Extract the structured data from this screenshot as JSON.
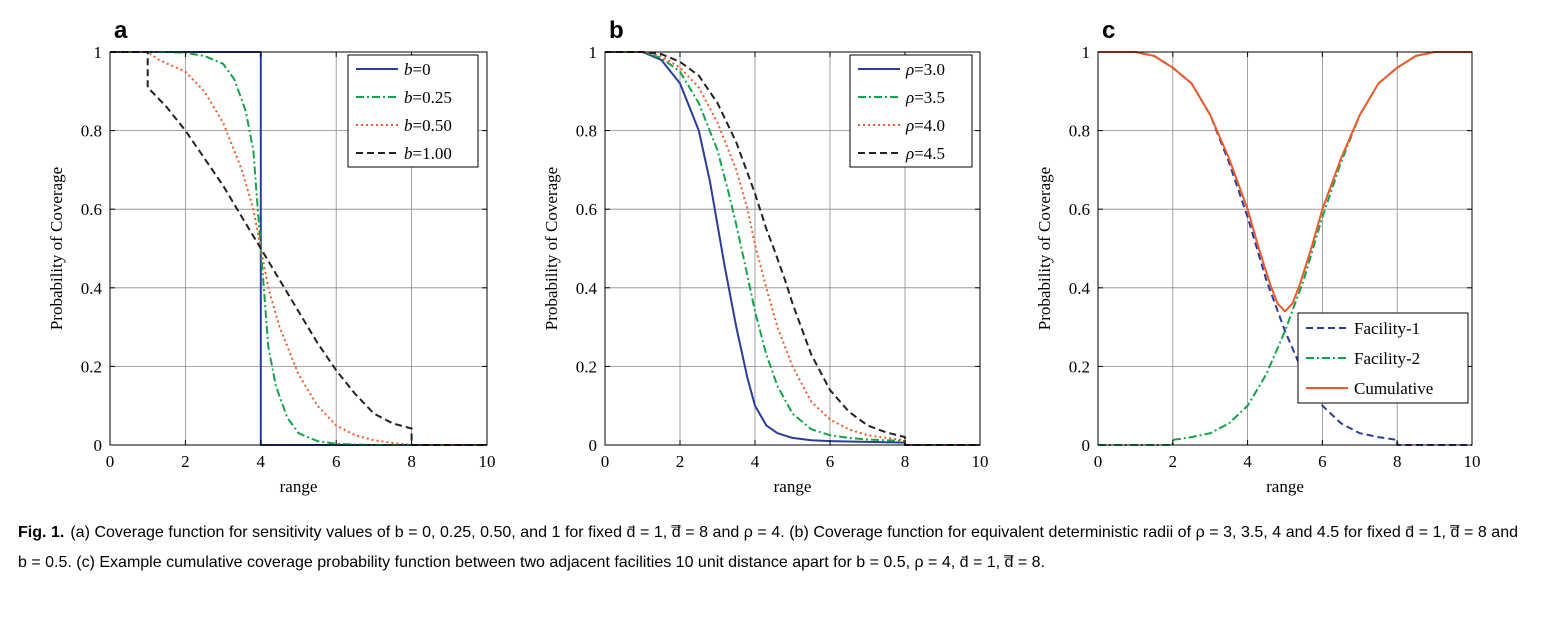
{
  "figure": {
    "caption_label": "Fig. 1.",
    "caption_text": "(a) Coverage function for sensitivity values of b = 0, 0.25, 0.50, and 1 for fixed d̄ = 1, d̿ = 8 and ρ = 4. (b) Coverage function for equivalent deterministic radii of ρ = 3, 3.5, 4 and 4.5 for fixed d̄ = 1, d̿ = 8 and b = 0.5. (c) Example cumulative coverage probability function between two adjacent facilities 10 unit distance apart for b = 0.5, ρ = 4, d̄ = 1, d̿ = 8."
  },
  "colors": {
    "blue": "#2a3d9c",
    "green": "#14a34a",
    "orange": "#ee5a2a",
    "black": "#222222"
  },
  "chart_data": [
    {
      "panel": "a",
      "type": "line",
      "title": "",
      "xlabel": "range",
      "ylabel": "Probability of Coverage",
      "xlim": [
        0,
        10
      ],
      "ylim": [
        0,
        1
      ],
      "xticks": [
        0,
        2,
        4,
        6,
        8,
        10
      ],
      "yticks": [
        0,
        0.2,
        0.4,
        0.6,
        0.8,
        1
      ],
      "xtick_labels": [
        "0",
        "2",
        "4",
        "6",
        "8",
        "10"
      ],
      "ytick_labels": [
        "0",
        "0.2",
        "0.4",
        "0.6",
        "0.8",
        "1"
      ],
      "grid": true,
      "legend_position": "top-right",
      "series": [
        {
          "name": "b=0",
          "legend_var": "b",
          "legend_val": "=0",
          "color": "#2a3d9c",
          "dash": "solid",
          "x": [
            0,
            4,
            4,
            10
          ],
          "y": [
            1,
            1,
            0,
            0
          ]
        },
        {
          "name": "b=0.25",
          "legend_var": "b",
          "legend_val": "=0.25",
          "color": "#14a34a",
          "dash": "dashdot",
          "x": [
            0,
            1,
            1.5,
            2,
            2.5,
            3,
            3.3,
            3.6,
            3.8,
            4,
            4.2,
            4.4,
            4.7,
            5,
            5.5,
            6,
            6.5,
            7,
            8,
            10
          ],
          "y": [
            1,
            1,
            1,
            0.998,
            0.99,
            0.97,
            0.93,
            0.85,
            0.75,
            0.5,
            0.25,
            0.15,
            0.07,
            0.03,
            0.01,
            0.003,
            0.001,
            0,
            0,
            0
          ]
        },
        {
          "name": "b=0.50",
          "legend_var": "b",
          "legend_val": "=0.50",
          "color": "#ee5a2a",
          "dash": "dotted",
          "x": [
            0,
            1,
            1.3,
            2,
            2.5,
            3,
            3.5,
            3.8,
            4,
            4.2,
            4.5,
            5,
            5.5,
            6,
            6.5,
            7,
            7.5,
            8,
            10
          ],
          "y": [
            1,
            1,
            0.98,
            0.95,
            0.9,
            0.82,
            0.7,
            0.6,
            0.5,
            0.4,
            0.3,
            0.18,
            0.1,
            0.05,
            0.025,
            0.012,
            0.005,
            0,
            0
          ]
        },
        {
          "name": "b=1.00",
          "legend_var": "b",
          "legend_val": "=1.00",
          "color": "#222222",
          "dash": "dashed",
          "x": [
            0,
            1,
            1,
            1.5,
            2,
            2.5,
            3,
            3.5,
            4,
            4.5,
            5,
            5.5,
            6,
            6.5,
            7,
            7.5,
            8,
            8,
            10
          ],
          "y": [
            1,
            1,
            0.91,
            0.86,
            0.8,
            0.73,
            0.66,
            0.58,
            0.5,
            0.42,
            0.34,
            0.26,
            0.19,
            0.13,
            0.08,
            0.055,
            0.042,
            0,
            0
          ]
        }
      ]
    },
    {
      "panel": "b",
      "type": "line",
      "title": "",
      "xlabel": "range",
      "ylabel": "Probability of Coverage",
      "xlim": [
        0,
        10
      ],
      "ylim": [
        0,
        1
      ],
      "xticks": [
        0,
        2,
        4,
        6,
        8,
        10
      ],
      "yticks": [
        0,
        0.2,
        0.4,
        0.6,
        0.8,
        1
      ],
      "xtick_labels": [
        "0",
        "2",
        "4",
        "6",
        "8",
        "10"
      ],
      "ytick_labels": [
        "0",
        "0.2",
        "0.4",
        "0.6",
        "0.8",
        "1"
      ],
      "grid": true,
      "legend_position": "top-right",
      "series": [
        {
          "name": "ρ=3.0",
          "legend_var": "ρ",
          "legend_val": "=3.0",
          "color": "#2a3d9c",
          "dash": "solid",
          "x": [
            0,
            1,
            1.5,
            2,
            2.5,
            2.8,
            3,
            3.2,
            3.5,
            3.8,
            4,
            4.3,
            4.6,
            5,
            5.5,
            6,
            7,
            8,
            8,
            10
          ],
          "y": [
            1,
            1,
            0.98,
            0.92,
            0.8,
            0.67,
            0.56,
            0.45,
            0.3,
            0.17,
            0.1,
            0.05,
            0.03,
            0.018,
            0.012,
            0.01,
            0.008,
            0.006,
            0,
            0
          ]
        },
        {
          "name": "ρ=3.5",
          "legend_var": "ρ",
          "legend_val": "=3.5",
          "color": "#14a34a",
          "dash": "dashdot",
          "x": [
            0,
            1,
            1.5,
            2,
            2.5,
            3,
            3.3,
            3.5,
            3.8,
            4,
            4.3,
            4.6,
            5,
            5.5,
            6,
            6.5,
            7,
            8,
            8,
            10
          ],
          "y": [
            1,
            1,
            0.985,
            0.95,
            0.87,
            0.75,
            0.64,
            0.56,
            0.43,
            0.34,
            0.23,
            0.15,
            0.08,
            0.04,
            0.025,
            0.018,
            0.014,
            0.01,
            0,
            0
          ]
        },
        {
          "name": "ρ=4.0",
          "legend_var": "ρ",
          "legend_val": "=4.0",
          "color": "#ee5a2a",
          "dash": "dotted",
          "x": [
            0,
            1,
            1.5,
            2,
            2.5,
            3,
            3.5,
            3.8,
            4,
            4.3,
            4.6,
            5,
            5.5,
            6,
            6.5,
            7,
            7.5,
            8,
            8,
            10
          ],
          "y": [
            1,
            1,
            0.99,
            0.96,
            0.91,
            0.82,
            0.7,
            0.6,
            0.51,
            0.4,
            0.3,
            0.2,
            0.11,
            0.065,
            0.04,
            0.025,
            0.018,
            0.012,
            0,
            0
          ]
        },
        {
          "name": "ρ=4.5",
          "legend_var": "ρ",
          "legend_val": "=4.5",
          "color": "#222222",
          "dash": "dashed",
          "x": [
            0,
            1,
            1.5,
            2,
            2.5,
            3,
            3.5,
            4,
            4.3,
            4.5,
            4.8,
            5,
            5.5,
            6,
            6.5,
            7,
            7.5,
            8,
            8,
            10
          ],
          "y": [
            1,
            1,
            0.995,
            0.975,
            0.94,
            0.87,
            0.77,
            0.64,
            0.55,
            0.5,
            0.42,
            0.36,
            0.23,
            0.14,
            0.085,
            0.05,
            0.032,
            0.02,
            0,
            0
          ]
        }
      ]
    },
    {
      "panel": "c",
      "type": "line",
      "title": "",
      "xlabel": "range",
      "ylabel": "Probability of Coverage",
      "xlim": [
        0,
        10
      ],
      "ylim": [
        0,
        1
      ],
      "xticks": [
        0,
        2,
        4,
        6,
        8,
        10
      ],
      "yticks": [
        0,
        0.2,
        0.4,
        0.6,
        0.8,
        1
      ],
      "xtick_labels": [
        "0",
        "2",
        "4",
        "6",
        "8",
        "10"
      ],
      "ytick_labels": [
        "0",
        "0.2",
        "0.4",
        "0.6",
        "0.8",
        "1"
      ],
      "grid": true,
      "legend_position": "bottom-right",
      "series": [
        {
          "name": "Facility-1",
          "legend_var": "",
          "legend_val": "Facility-1",
          "color": "#2a3d9c",
          "dash": "dashed",
          "x": [
            0,
            1,
            1.5,
            2,
            2.5,
            3,
            3.5,
            4,
            4.5,
            5,
            5.5,
            6,
            6.5,
            7,
            7.5,
            8,
            8,
            10
          ],
          "y": [
            1,
            1,
            0.99,
            0.96,
            0.92,
            0.84,
            0.72,
            0.58,
            0.42,
            0.29,
            0.18,
            0.1,
            0.055,
            0.03,
            0.02,
            0.013,
            0,
            0
          ]
        },
        {
          "name": "Facility-2",
          "legend_var": "",
          "legend_val": "Facility-2",
          "color": "#14a34a",
          "dash": "dashdot",
          "x": [
            0,
            2,
            2,
            2.5,
            3,
            3.5,
            4,
            4.5,
            5,
            5.5,
            6,
            6.5,
            7,
            7.5,
            8,
            8.5,
            9,
            10
          ],
          "y": [
            0,
            0,
            0.013,
            0.02,
            0.03,
            0.055,
            0.1,
            0.18,
            0.29,
            0.42,
            0.58,
            0.72,
            0.84,
            0.92,
            0.96,
            0.99,
            1,
            1
          ]
        },
        {
          "name": "Cumulative",
          "legend_var": "",
          "legend_val": "Cumulative",
          "color": "#ee5a2a",
          "dash": "solid",
          "x": [
            0,
            1,
            1.5,
            2,
            2.5,
            3,
            3.5,
            4,
            4.3,
            4.6,
            4.8,
            5,
            5.2,
            5.4,
            5.7,
            6,
            6.5,
            7,
            7.5,
            8,
            8.5,
            9,
            10
          ],
          "y": [
            1,
            1,
            0.99,
            0.96,
            0.92,
            0.84,
            0.73,
            0.6,
            0.5,
            0.41,
            0.36,
            0.34,
            0.36,
            0.41,
            0.5,
            0.6,
            0.73,
            0.84,
            0.92,
            0.96,
            0.99,
            1,
            1
          ]
        }
      ]
    }
  ]
}
